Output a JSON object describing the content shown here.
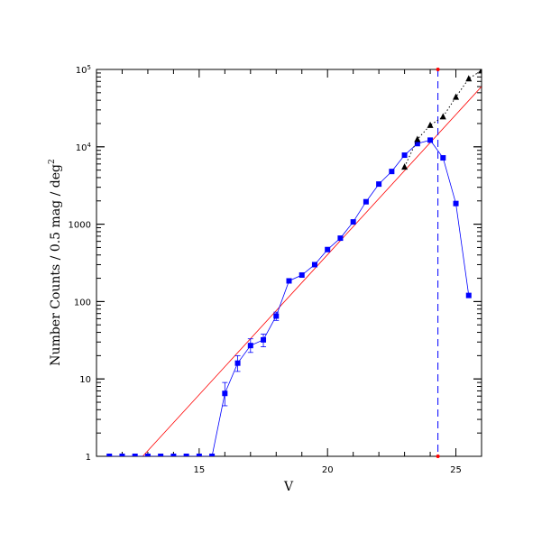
{
  "chart_data": {
    "type": "scatter",
    "title": "",
    "xlabel": "V",
    "ylabel": "Number Counts / 0.5 mag / deg",
    "ylabel_superscript": "2",
    "xlim": [
      11,
      26
    ],
    "ylim": [
      1,
      100000
    ],
    "yscale": "log",
    "grid": false,
    "x_tick_labels": [
      "15",
      "20",
      "25"
    ],
    "x_tick_values": [
      15,
      20,
      25
    ],
    "y_tick_values": [
      1,
      10,
      100,
      1000,
      10000,
      100000
    ],
    "y_tick_labels": [
      {
        "base": "1",
        "sup": ""
      },
      {
        "base": "10",
        "sup": ""
      },
      {
        "base": "100",
        "sup": ""
      },
      {
        "base": "1000",
        "sup": ""
      },
      {
        "base": "10",
        "sup": "4"
      },
      {
        "base": "10",
        "sup": "5"
      }
    ],
    "series": [
      {
        "marker": "square",
        "color": "#0000ff",
        "line": "solid",
        "x": [
          11.5,
          12.0,
          12.5,
          13.0,
          13.5,
          14.0,
          14.5,
          15.0,
          15.5,
          16.0,
          16.5,
          17.0,
          17.5,
          18.0,
          18.5,
          19.0,
          19.5,
          20.0,
          20.5,
          21.0,
          21.5,
          22.0,
          22.5,
          23.0,
          23.5,
          24.0,
          24.5,
          25.0,
          25.5
        ],
        "y": [
          1,
          1,
          1,
          1,
          1,
          1,
          1,
          1,
          1,
          6.5,
          16,
          27,
          32,
          65,
          185,
          220,
          300,
          470,
          660,
          1070,
          1950,
          3300,
          4800,
          7800,
          11000,
          12200,
          7200,
          1850,
          120
        ],
        "yerr_low": [
          0,
          0,
          0,
          0,
          0,
          0,
          0,
          0,
          0,
          2.0,
          3.5,
          5,
          6,
          8,
          0,
          0,
          0,
          0,
          0,
          0,
          0,
          0,
          0,
          0,
          0,
          0,
          0,
          0,
          0
        ],
        "yerr_high": [
          0,
          0,
          0,
          0,
          0,
          0,
          0,
          0,
          0,
          2.5,
          4,
          6,
          6,
          8,
          0,
          0,
          0,
          0,
          0,
          0,
          0,
          0,
          0,
          0,
          0,
          0,
          0,
          0,
          0
        ]
      },
      {
        "marker": "triangle",
        "color": "#000000",
        "line": "dotted",
        "x": [
          23.0,
          23.5,
          24.0,
          24.5,
          25.0,
          25.5,
          26.0
        ],
        "y": [
          5500,
          12500,
          19000,
          24500,
          44000,
          76000,
          97000
        ]
      }
    ],
    "fit_line": {
      "color": "#ff0000",
      "x": [
        12.8,
        26.0
      ],
      "y": [
        1,
        60000
      ]
    },
    "completeness_limit": {
      "x": 24.3,
      "color": "#0000ff",
      "style": "dashed"
    }
  }
}
